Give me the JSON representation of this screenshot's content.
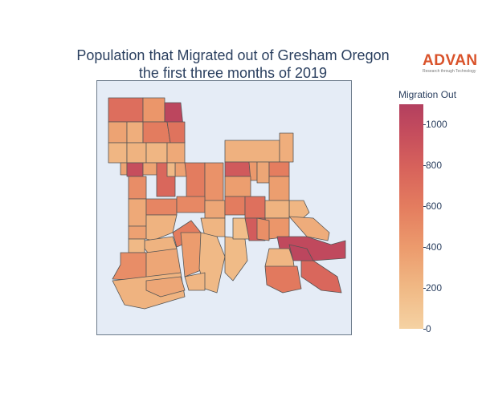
{
  "title": {
    "line1": "Population that Migrated out of Gresham Oregon",
    "line2": "the first three months of 2019"
  },
  "logo": {
    "name": "ADVAN",
    "tagline": "Research through Technology"
  },
  "legend": {
    "title": "Migration Out",
    "ticks": [
      "1000",
      "800",
      "600",
      "400",
      "200",
      "0"
    ],
    "range": [
      0,
      1100
    ],
    "colors": [
      "#f5d2a3",
      "#f0b985",
      "#ec9b6d",
      "#e47d5f",
      "#d7625b",
      "#c44c5d",
      "#b33f5f"
    ]
  },
  "map": {
    "background": "#e5ecf6",
    "border_color": "#555555",
    "region_values": [
      650,
      400,
      1000,
      320,
      250,
      560,
      620,
      200,
      220,
      200,
      280,
      230,
      250,
      320,
      900,
      320,
      700,
      330,
      180,
      450,
      560,
      420,
      800,
      380,
      300,
      550,
      350,
      280,
      500,
      480,
      300,
      560,
      640,
      350,
      200,
      220,
      330,
      220,
      560,
      210,
      780,
      400,
      260,
      220,
      180,
      450,
      300,
      220,
      360,
      960,
      700,
      1000,
      200,
      580,
      180,
      170,
      150,
      200,
      440,
      300
    ]
  }
}
